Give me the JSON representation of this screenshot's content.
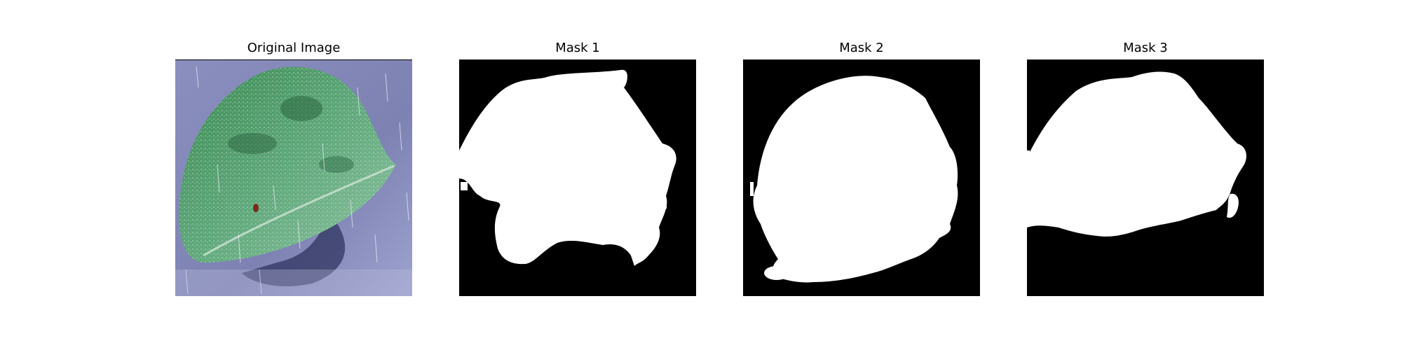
{
  "figure": {
    "panels": [
      {
        "title": "Original Image"
      },
      {
        "title": "Mask 1"
      },
      {
        "title": "Mask 2"
      },
      {
        "title": "Mask 3"
      }
    ]
  },
  "colors": {
    "background": "#ffffff",
    "mask_background": "#000000",
    "mask_foreground": "#ffffff",
    "leaf_green": "#3e8f55",
    "surface_blue": "#8f95c2"
  }
}
